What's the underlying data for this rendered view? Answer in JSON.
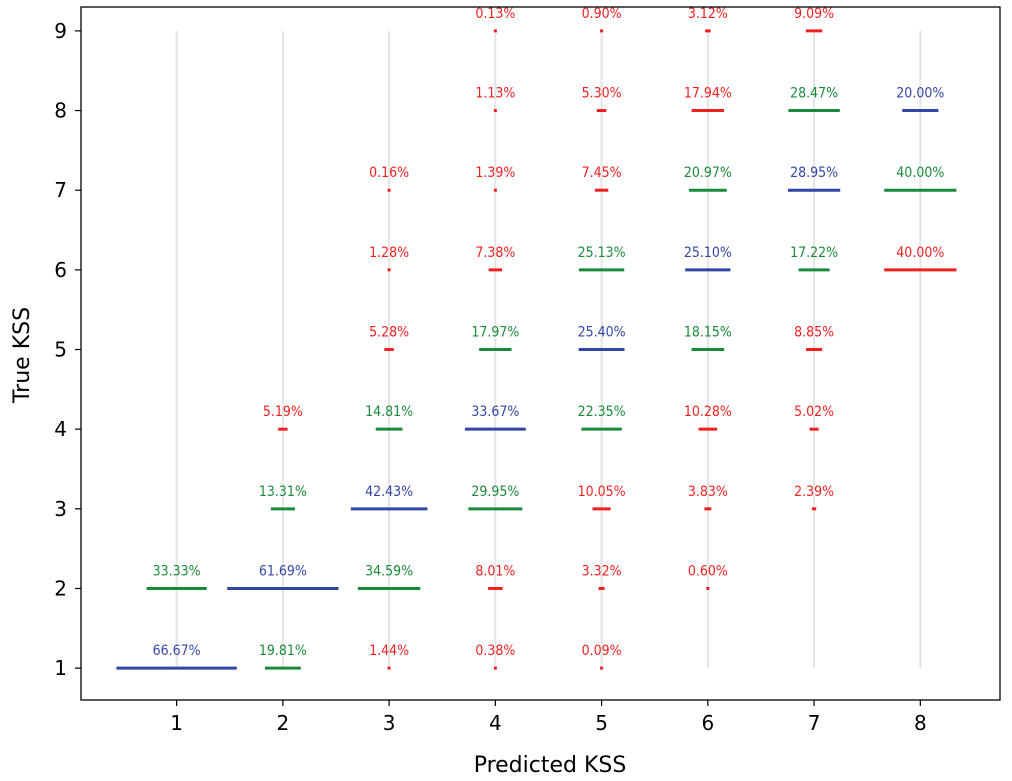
{
  "chart_data": {
    "type": "scatter",
    "xlabel": "Predicted KSS",
    "ylabel": "True KSS",
    "x_ticks": [
      1,
      2,
      3,
      4,
      5,
      6,
      7,
      8
    ],
    "y_ticks": [
      1,
      2,
      3,
      4,
      5,
      6,
      7,
      8,
      9
    ],
    "xlim": [
      0.1,
      8.75
    ],
    "ylim": [
      0.6,
      9.3
    ],
    "grid": "vertical lines at each predicted class",
    "colors": {
      "diagonal": "#3346a6",
      "adjacent": "#1a8a3a",
      "other": "#ee2020",
      "grid": "#e4e4e4"
    },
    "points": [
      {
        "x": 1,
        "y": 1,
        "label": "66.67%",
        "value": 66.67,
        "cat": "diagonal"
      },
      {
        "x": 1,
        "y": 2,
        "label": "33.33%",
        "value": 33.33,
        "cat": "adjacent"
      },
      {
        "x": 2,
        "y": 1,
        "label": "19.81%",
        "value": 19.81,
        "cat": "adjacent"
      },
      {
        "x": 2,
        "y": 2,
        "label": "61.69%",
        "value": 61.69,
        "cat": "diagonal"
      },
      {
        "x": 2,
        "y": 3,
        "label": "13.31%",
        "value": 13.31,
        "cat": "adjacent"
      },
      {
        "x": 2,
        "y": 4,
        "label": "5.19%",
        "value": 5.19,
        "cat": "other"
      },
      {
        "x": 3,
        "y": 1,
        "label": "1.44%",
        "value": 1.44,
        "cat": "other"
      },
      {
        "x": 3,
        "y": 2,
        "label": "34.59%",
        "value": 34.59,
        "cat": "adjacent"
      },
      {
        "x": 3,
        "y": 3,
        "label": "42.43%",
        "value": 42.43,
        "cat": "diagonal"
      },
      {
        "x": 3,
        "y": 4,
        "label": "14.81%",
        "value": 14.81,
        "cat": "adjacent"
      },
      {
        "x": 3,
        "y": 5,
        "label": "5.28%",
        "value": 5.28,
        "cat": "other"
      },
      {
        "x": 3,
        "y": 6,
        "label": "1.28%",
        "value": 1.28,
        "cat": "other"
      },
      {
        "x": 3,
        "y": 7,
        "label": "0.16%",
        "value": 0.16,
        "cat": "other"
      },
      {
        "x": 4,
        "y": 1,
        "label": "0.38%",
        "value": 0.38,
        "cat": "other"
      },
      {
        "x": 4,
        "y": 2,
        "label": "8.01%",
        "value": 8.01,
        "cat": "other"
      },
      {
        "x": 4,
        "y": 3,
        "label": "29.95%",
        "value": 29.95,
        "cat": "adjacent"
      },
      {
        "x": 4,
        "y": 4,
        "label": "33.67%",
        "value": 33.67,
        "cat": "diagonal"
      },
      {
        "x": 4,
        "y": 5,
        "label": "17.97%",
        "value": 17.97,
        "cat": "adjacent"
      },
      {
        "x": 4,
        "y": 6,
        "label": "7.38%",
        "value": 7.38,
        "cat": "other"
      },
      {
        "x": 4,
        "y": 7,
        "label": "1.39%",
        "value": 1.39,
        "cat": "other"
      },
      {
        "x": 4,
        "y": 8,
        "label": "1.13%",
        "value": 1.13,
        "cat": "other"
      },
      {
        "x": 4,
        "y": 9,
        "label": "0.13%",
        "value": 0.13,
        "cat": "other"
      },
      {
        "x": 5,
        "y": 1,
        "label": "0.09%",
        "value": 0.09,
        "cat": "other"
      },
      {
        "x": 5,
        "y": 2,
        "label": "3.32%",
        "value": 3.32,
        "cat": "other"
      },
      {
        "x": 5,
        "y": 3,
        "label": "10.05%",
        "value": 10.05,
        "cat": "other"
      },
      {
        "x": 5,
        "y": 4,
        "label": "22.35%",
        "value": 22.35,
        "cat": "adjacent"
      },
      {
        "x": 5,
        "y": 5,
        "label": "25.40%",
        "value": 25.4,
        "cat": "diagonal"
      },
      {
        "x": 5,
        "y": 6,
        "label": "25.13%",
        "value": 25.13,
        "cat": "adjacent"
      },
      {
        "x": 5,
        "y": 7,
        "label": "7.45%",
        "value": 7.45,
        "cat": "other"
      },
      {
        "x": 5,
        "y": 8,
        "label": "5.30%",
        "value": 5.3,
        "cat": "other"
      },
      {
        "x": 5,
        "y": 9,
        "label": "0.90%",
        "value": 0.9,
        "cat": "other"
      },
      {
        "x": 6,
        "y": 2,
        "label": "0.60%",
        "value": 0.6,
        "cat": "other"
      },
      {
        "x": 6,
        "y": 3,
        "label": "3.83%",
        "value": 3.83,
        "cat": "other"
      },
      {
        "x": 6,
        "y": 4,
        "label": "10.28%",
        "value": 10.28,
        "cat": "other"
      },
      {
        "x": 6,
        "y": 5,
        "label": "18.15%",
        "value": 18.15,
        "cat": "adjacent"
      },
      {
        "x": 6,
        "y": 6,
        "label": "25.10%",
        "value": 25.1,
        "cat": "diagonal"
      },
      {
        "x": 6,
        "y": 7,
        "label": "20.97%",
        "value": 20.97,
        "cat": "adjacent"
      },
      {
        "x": 6,
        "y": 8,
        "label": "17.94%",
        "value": 17.94,
        "cat": "other"
      },
      {
        "x": 6,
        "y": 9,
        "label": "3.12%",
        "value": 3.12,
        "cat": "other"
      },
      {
        "x": 7,
        "y": 3,
        "label": "2.39%",
        "value": 2.39,
        "cat": "other"
      },
      {
        "x": 7,
        "y": 4,
        "label": "5.02%",
        "value": 5.02,
        "cat": "other"
      },
      {
        "x": 7,
        "y": 5,
        "label": "8.85%",
        "value": 8.85,
        "cat": "other"
      },
      {
        "x": 7,
        "y": 6,
        "label": "17.22%",
        "value": 17.22,
        "cat": "adjacent"
      },
      {
        "x": 7,
        "y": 7,
        "label": "28.95%",
        "value": 28.95,
        "cat": "diagonal"
      },
      {
        "x": 7,
        "y": 8,
        "label": "28.47%",
        "value": 28.47,
        "cat": "adjacent"
      },
      {
        "x": 7,
        "y": 9,
        "label": "9.09%",
        "value": 9.09,
        "cat": "other"
      },
      {
        "x": 8,
        "y": 6,
        "label": "40.00%",
        "value": 40.0,
        "cat": "other"
      },
      {
        "x": 8,
        "y": 7,
        "label": "40.00%",
        "value": 40.0,
        "cat": "adjacent"
      },
      {
        "x": 8,
        "y": 8,
        "label": "20.00%",
        "value": 20.0,
        "cat": "diagonal"
      }
    ]
  }
}
